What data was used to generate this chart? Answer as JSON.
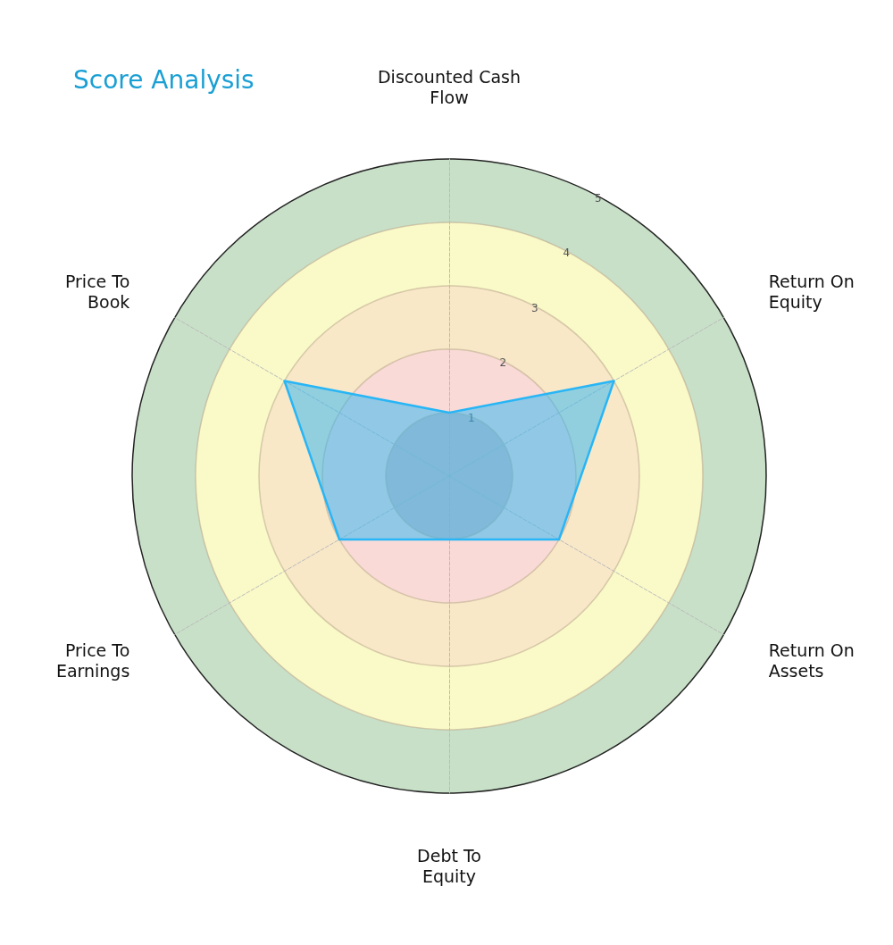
{
  "chart_data": {
    "type": "radar",
    "title": "Score Analysis",
    "categories": [
      "Discounted Cash\nFlow",
      "Return On\nEquity",
      "Return On\nAssets",
      "Debt To\nEquity",
      "Price To\nEarnings",
      "Price To\nBook"
    ],
    "series": [
      {
        "color": "#29b6f6",
        "values": [
          1,
          3,
          2,
          1,
          2,
          3
        ]
      }
    ],
    "ylim": [
      0,
      5
    ],
    "yticks": [
      1,
      2,
      3,
      4,
      5
    ],
    "grid": true,
    "marker": "none",
    "line_style": "solid"
  }
}
